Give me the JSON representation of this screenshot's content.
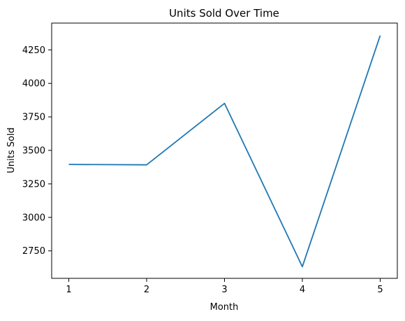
{
  "chart_data": {
    "type": "line",
    "title": "Units Sold Over Time",
    "xlabel": "Month",
    "ylabel": "Units Sold",
    "x": [
      1,
      2,
      3,
      4,
      5
    ],
    "xticks": [
      1,
      2,
      3,
      4,
      5
    ],
    "xlim": [
      0.78,
      5.22
    ],
    "yticks": [
      2750,
      3000,
      3250,
      3500,
      3750,
      4000,
      4250
    ],
    "ylim": [
      2545,
      4450
    ],
    "grid": false,
    "series": [
      {
        "name": "Units Sold",
        "color": "#1f77b4",
        "values": [
          3395,
          3392,
          3851,
          2632,
          4357
        ]
      }
    ]
  }
}
